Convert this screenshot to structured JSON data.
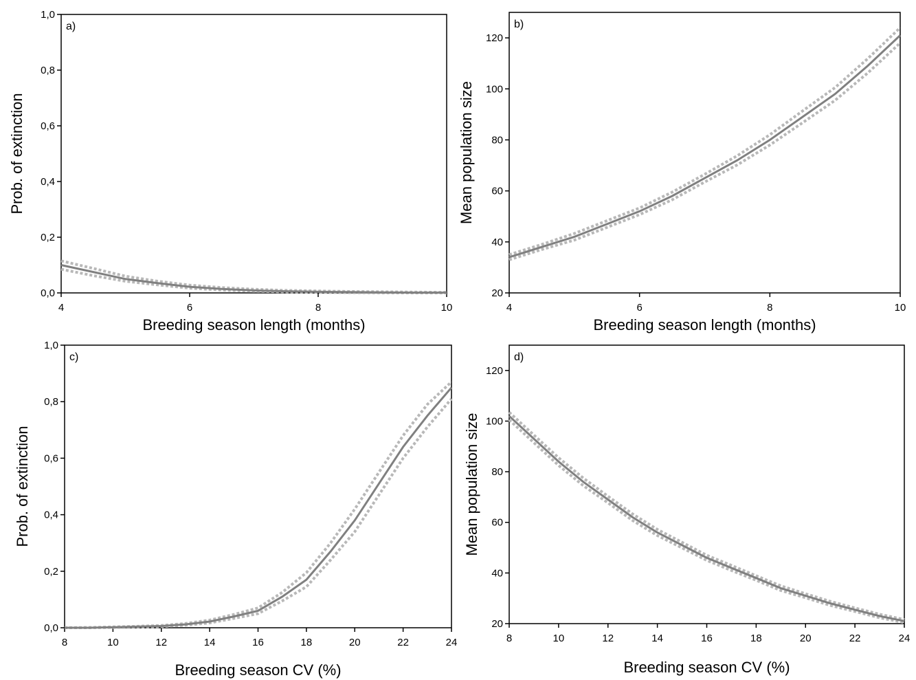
{
  "chart_data": [
    {
      "type": "line",
      "panel_label": "a)",
      "xlabel": "Breeding season length (months)",
      "ylabel": "Prob. of extinction",
      "xlim": [
        4,
        10
      ],
      "ylim": [
        0,
        1
      ],
      "xticks": [
        "4",
        "6",
        "8",
        "10"
      ],
      "yticks": [
        "0,0",
        "0,2",
        "0,4",
        "0,6",
        "0,8",
        "1,0"
      ],
      "x": [
        4,
        4.5,
        5,
        5.5,
        6,
        6.5,
        7,
        7.5,
        8,
        8.5,
        9,
        9.5,
        10
      ],
      "series": [
        {
          "role": "mean",
          "values": [
            0.1,
            0.075,
            0.05,
            0.035,
            0.022,
            0.014,
            0.009,
            0.006,
            0.004,
            0.003,
            0.002,
            0.001,
            0.001
          ]
        },
        {
          "role": "ci-upper",
          "values": [
            0.115,
            0.088,
            0.06,
            0.042,
            0.028,
            0.019,
            0.013,
            0.009,
            0.007,
            0.005,
            0.004,
            0.003,
            0.002
          ]
        },
        {
          "role": "ci-lower",
          "values": [
            0.085,
            0.062,
            0.042,
            0.029,
            0.017,
            0.01,
            0.006,
            0.004,
            0.002,
            0.001,
            0.0,
            0.0,
            0.0
          ]
        }
      ]
    },
    {
      "type": "line",
      "panel_label": "b)",
      "xlabel": "Breeding season length (months)",
      "ylabel": "Mean population size",
      "xlim": [
        4,
        10
      ],
      "ylim": [
        20,
        130
      ],
      "xticks": [
        "4",
        "6",
        "8",
        "10"
      ],
      "yticks": [
        "20",
        "40",
        "60",
        "80",
        "100",
        "120"
      ],
      "x": [
        4,
        4.5,
        5,
        5.5,
        6,
        6.5,
        7,
        7.5,
        8,
        8.5,
        9,
        9.5,
        10
      ],
      "series": [
        {
          "role": "mean",
          "values": [
            34,
            38,
            42,
            47,
            52,
            58,
            65,
            72,
            80,
            89,
            98,
            109,
            121
          ]
        },
        {
          "role": "ci-upper",
          "values": [
            35,
            39,
            43.3,
            48.3,
            53.3,
            59.5,
            66.5,
            73.8,
            82,
            91.3,
            100.5,
            111.8,
            124
          ]
        },
        {
          "role": "ci-lower",
          "values": [
            33,
            37,
            40.7,
            45.7,
            50.7,
            56.5,
            63.5,
            70.2,
            78,
            86.7,
            95.5,
            106.2,
            118
          ]
        }
      ]
    },
    {
      "type": "line",
      "panel_label": "c)",
      "xlabel": "Breeding season CV (%)",
      "ylabel": "Prob. of extinction",
      "xlim": [
        8,
        24
      ],
      "ylim": [
        0,
        1
      ],
      "xticks": [
        "8",
        "10",
        "12",
        "14",
        "16",
        "18",
        "20",
        "22",
        "24"
      ],
      "yticks": [
        "0,0",
        "0,2",
        "0,4",
        "0,6",
        "0,8",
        "1,0"
      ],
      "x": [
        8,
        9,
        10,
        11,
        12,
        13,
        14,
        15,
        16,
        17,
        18,
        19,
        20,
        21,
        22,
        23,
        24
      ],
      "series": [
        {
          "role": "mean",
          "values": [
            0.0,
            0.0,
            0.002,
            0.004,
            0.006,
            0.012,
            0.022,
            0.04,
            0.06,
            0.11,
            0.17,
            0.27,
            0.38,
            0.51,
            0.64,
            0.75,
            0.85
          ]
        },
        {
          "role": "ci-upper",
          "values": [
            0.0,
            0.001,
            0.003,
            0.005,
            0.008,
            0.015,
            0.027,
            0.047,
            0.07,
            0.125,
            0.195,
            0.3,
            0.42,
            0.55,
            0.68,
            0.79,
            0.87
          ]
        },
        {
          "role": "ci-lower",
          "values": [
            0.0,
            0.0,
            0.001,
            0.002,
            0.004,
            0.009,
            0.017,
            0.033,
            0.05,
            0.095,
            0.145,
            0.24,
            0.34,
            0.47,
            0.6,
            0.71,
            0.81
          ]
        }
      ]
    },
    {
      "type": "line",
      "panel_label": "d)",
      "xlabel": "Breeding season CV (%)",
      "ylabel": "Mean population size",
      "xlim": [
        8,
        24
      ],
      "ylim": [
        20,
        130
      ],
      "xticks": [
        "8",
        "10",
        "12",
        "14",
        "16",
        "18",
        "20",
        "22",
        "24"
      ],
      "yticks": [
        "20",
        "40",
        "60",
        "80",
        "100",
        "120"
      ],
      "x": [
        8,
        9,
        10,
        11,
        12,
        13,
        14,
        15,
        16,
        17,
        18,
        19,
        20,
        21,
        22,
        23,
        24
      ],
      "series": [
        {
          "role": "mean",
          "values": [
            102,
            93,
            84,
            76,
            69,
            62,
            56,
            51,
            46,
            42,
            38,
            34,
            31,
            28,
            25.5,
            23,
            21
          ]
        },
        {
          "role": "ci-upper",
          "values": [
            103.5,
            94.5,
            85.5,
            77.5,
            70.3,
            63.3,
            57.2,
            52.1,
            47,
            43,
            38.9,
            34.9,
            31.8,
            28.8,
            26.2,
            23.7,
            21.6
          ]
        },
        {
          "role": "ci-lower",
          "values": [
            100.5,
            91.5,
            82.5,
            74.5,
            67.7,
            60.7,
            54.8,
            49.9,
            45,
            41,
            37.1,
            33.1,
            30.2,
            27.2,
            24.8,
            22.3,
            20.4
          ]
        }
      ]
    }
  ]
}
